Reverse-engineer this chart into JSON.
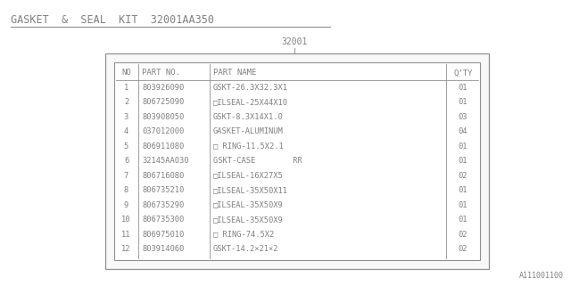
{
  "title": "GASKET  &  SEAL  KIT  32001AA350",
  "part_label": "32001",
  "watermark": "A111001100",
  "bg_color": "#ffffff",
  "text_color": "#808080",
  "line_color": "#909090",
  "table": {
    "headers": [
      "NO",
      "PART NO.",
      "PART NAME",
      "Q’TY"
    ],
    "rows": [
      [
        "1",
        "803926090",
        "GSKT-26.3X32.3X1",
        "01"
      ],
      [
        "2",
        "806725090",
        "□ILSEAL-25X44X10",
        "01"
      ],
      [
        "3",
        "803908050",
        "GSKT-8.3X14X1.0",
        "03"
      ],
      [
        "4",
        "037012000",
        "GASKET-ALUMINUM",
        "04"
      ],
      [
        "5",
        "806911080",
        "□ RING-11.5X2.1",
        "01"
      ],
      [
        "6",
        "32145AA030",
        "GSKT-CASE        RR",
        "01"
      ],
      [
        "7",
        "806716080",
        "□ILSEAL-16X27X5",
        "02"
      ],
      [
        "8",
        "806735210",
        "□ILSEAL-35X50X11",
        "01"
      ],
      [
        "9",
        "806735290",
        "□ILSEAL-35X50X9",
        "01"
      ],
      [
        "10",
        "806735300",
        "□ILSEAL-35X50X9",
        "01"
      ],
      [
        "11",
        "806975010",
        "□ RING-74.5X2",
        "02"
      ],
      [
        "12",
        "803914060",
        "GSKT-14.2×21×2",
        "02"
      ]
    ]
  },
  "figw": 6.4,
  "figh": 3.2,
  "dpi": 100
}
